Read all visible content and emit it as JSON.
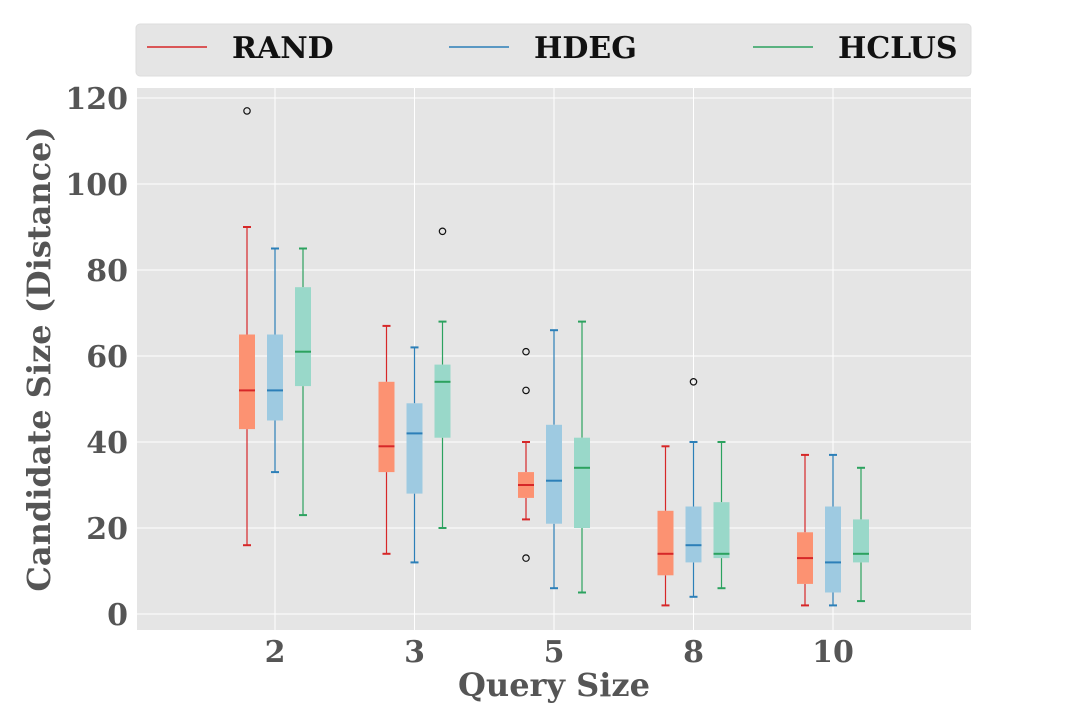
{
  "chart_data": {
    "type": "box",
    "title": "",
    "xlabel": "Query Size",
    "ylabel": "Candidate Size (Distance)",
    "categories": [
      "2",
      "3",
      "5",
      "8",
      "10"
    ],
    "ylim": [
      -3,
      123
    ],
    "yticks": [
      0,
      20,
      40,
      60,
      80,
      100,
      120
    ],
    "grid": true,
    "legend_position": "top",
    "series": [
      {
        "name": "RAND",
        "color": "#d62728",
        "fill": "#fc9272",
        "boxes": [
          {
            "whislo": 16,
            "q1": 43,
            "med": 52,
            "q3": 65,
            "whishi": 90,
            "fliers": [
              117
            ]
          },
          {
            "whislo": 14,
            "q1": 33,
            "med": 39,
            "q3": 54,
            "whishi": 67,
            "fliers": []
          },
          {
            "whislo": 22,
            "q1": 27,
            "med": 30,
            "q3": 33,
            "whishi": 40,
            "fliers": [
              61,
              52,
              13
            ]
          },
          {
            "whislo": 2,
            "q1": 9,
            "med": 14,
            "q3": 24,
            "whishi": 39,
            "fliers": []
          },
          {
            "whislo": 2,
            "q1": 7,
            "med": 13,
            "q3": 19,
            "whishi": 37,
            "fliers": []
          }
        ]
      },
      {
        "name": "HDEG",
        "color": "#2c7fb8",
        "fill": "#9ecae1",
        "boxes": [
          {
            "whislo": 33,
            "q1": 45,
            "med": 52,
            "q3": 65,
            "whishi": 85,
            "fliers": []
          },
          {
            "whislo": 12,
            "q1": 28,
            "med": 42,
            "q3": 49,
            "whishi": 62,
            "fliers": []
          },
          {
            "whislo": 6,
            "q1": 21,
            "med": 31,
            "q3": 44,
            "whishi": 66,
            "fliers": []
          },
          {
            "whislo": 4,
            "q1": 12,
            "med": 16,
            "q3": 25,
            "whishi": 40,
            "fliers": [
              54
            ]
          },
          {
            "whislo": 2,
            "q1": 5,
            "med": 12,
            "q3": 25,
            "whishi": 37,
            "fliers": []
          }
        ]
      },
      {
        "name": "HCLUS",
        "color": "#2ca25f",
        "fill": "#99d8c9",
        "boxes": [
          {
            "whislo": 23,
            "q1": 53,
            "med": 61,
            "q3": 76,
            "whishi": 85,
            "fliers": []
          },
          {
            "whislo": 20,
            "q1": 41,
            "med": 54,
            "q3": 58,
            "whishi": 68,
            "fliers": [
              89
            ]
          },
          {
            "whislo": 5,
            "q1": 20,
            "med": 34,
            "q3": 41,
            "whishi": 68,
            "fliers": []
          },
          {
            "whislo": 6,
            "q1": 13,
            "med": 14,
            "q3": 26,
            "whishi": 40,
            "fliers": []
          },
          {
            "whislo": 3,
            "q1": 12,
            "med": 14,
            "q3": 22,
            "whishi": 34,
            "fliers": []
          }
        ]
      }
    ]
  }
}
